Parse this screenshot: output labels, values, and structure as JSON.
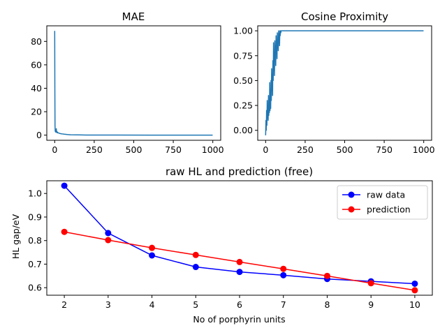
{
  "chart_data": [
    {
      "type": "line",
      "title": "MAE",
      "xlabel": "",
      "ylabel": "",
      "xlim": [
        -50,
        1050
      ],
      "ylim": [
        -4.4,
        93.3
      ],
      "xticks": [
        0,
        250,
        500,
        750,
        1000
      ],
      "yticks": [
        0,
        20,
        40,
        60,
        80
      ],
      "grid": false,
      "color": "#1f77b4",
      "series": [
        {
          "x": [
            0,
            1,
            2,
            3,
            4,
            5,
            6,
            7,
            8,
            9,
            10,
            12,
            14,
            16,
            18,
            20,
            25,
            30,
            40,
            50,
            60,
            80,
            100,
            150,
            200,
            400,
            600,
            800,
            999
          ],
          "y": [
            89,
            40,
            8,
            4,
            3,
            3.5,
            4.5,
            2.5,
            4,
            3,
            5.5,
            2.5,
            3,
            2,
            2.5,
            2,
            1.8,
            1.5,
            1.2,
            1,
            0.8,
            0.5,
            0.3,
            0.2,
            0.1,
            0.05,
            0.02,
            0.01,
            0.01
          ]
        }
      ]
    },
    {
      "type": "line",
      "title": "Cosine Proximity",
      "xlabel": "",
      "ylabel": "",
      "xlim": [
        -50,
        1050
      ],
      "ylim": [
        -0.1,
        1.05
      ],
      "xticks": [
        0,
        250,
        500,
        750,
        1000
      ],
      "yticks": [
        0.0,
        0.25,
        0.5,
        0.75,
        1.0
      ],
      "ytick_labels": [
        "0.00",
        "0.25",
        "0.50",
        "0.75",
        "1.00"
      ],
      "grid": false,
      "color": "#1f77b4",
      "series": [
        {
          "x": [
            0,
            2,
            4,
            6,
            8,
            10,
            12,
            14,
            16,
            18,
            20,
            22,
            24,
            26,
            28,
            30,
            32,
            34,
            36,
            38,
            40,
            42,
            44,
            46,
            48,
            50,
            52,
            54,
            56,
            58,
            60,
            62,
            64,
            66,
            68,
            70,
            72,
            74,
            76,
            78,
            80,
            82,
            84,
            86,
            88,
            90,
            92,
            94,
            96,
            98,
            100,
            150,
            300,
            500,
            700,
            999
          ],
          "y": [
            -0.05,
            0.1,
            0.0,
            0.2,
            0.05,
            0.3,
            0.12,
            0.25,
            0.1,
            0.35,
            0.15,
            0.32,
            0.18,
            0.48,
            0.2,
            0.38,
            0.22,
            0.5,
            0.3,
            0.62,
            0.4,
            0.55,
            0.35,
            0.7,
            0.5,
            0.88,
            0.6,
            0.75,
            0.55,
            0.9,
            0.7,
            0.85,
            0.65,
            0.95,
            0.8,
            0.9,
            0.72,
            0.98,
            0.85,
            0.92,
            0.8,
            1.0,
            0.9,
            0.97,
            0.85,
            1.0,
            0.95,
            1.0,
            0.98,
            1.0,
            1.0,
            1.0,
            1.0,
            1.0,
            1.0,
            1.0
          ]
        }
      ]
    },
    {
      "type": "line",
      "title": "raw HL and prediction (free)",
      "xlabel": "No of porphyrin units",
      "ylabel": "HL gap/eV",
      "xlim": [
        1.6,
        10.4
      ],
      "ylim": [
        0.568,
        1.054
      ],
      "xticks": [
        2,
        3,
        4,
        5,
        6,
        7,
        8,
        9,
        10
      ],
      "yticks": [
        0.6,
        0.7,
        0.8,
        0.9,
        1.0
      ],
      "ytick_labels": [
        "0.6",
        "0.7",
        "0.8",
        "0.9",
        "1.0"
      ],
      "grid": false,
      "legend": "top-right",
      "series": [
        {
          "name": "raw data",
          "color": "#0000ff",
          "x": [
            2,
            3,
            4,
            5,
            6,
            7,
            8,
            9,
            10
          ],
          "y": [
            1.033,
            0.832,
            0.737,
            0.688,
            0.667,
            0.653,
            0.637,
            0.627,
            0.617
          ]
        },
        {
          "name": "prediction",
          "color": "#ff0000",
          "x": [
            2,
            3,
            4,
            5,
            6,
            7,
            8,
            9,
            10
          ],
          "y": [
            0.837,
            0.802,
            0.769,
            0.739,
            0.709,
            0.68,
            0.65,
            0.619,
            0.589
          ]
        }
      ]
    }
  ]
}
